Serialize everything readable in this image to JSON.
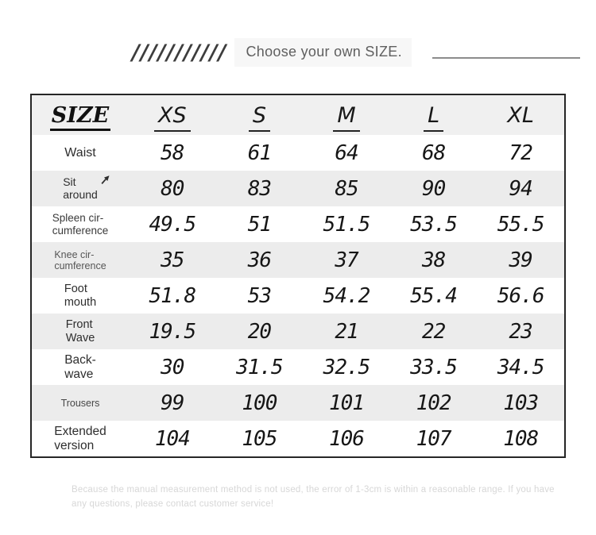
{
  "header": {
    "slashes": "///////////",
    "title": "Choose your own SIZE."
  },
  "table": {
    "corner_label": "SIZE",
    "columns": [
      {
        "label": "XS",
        "underlined": true
      },
      {
        "label": "S",
        "underlined": true
      },
      {
        "label": "M",
        "underlined": true
      },
      {
        "label": "L",
        "underlined": true
      },
      {
        "label": "XL",
        "underlined": false
      }
    ],
    "rows": [
      {
        "label_lines": [
          "Waist"
        ],
        "values": [
          "58",
          "61",
          "64",
          "68",
          "72"
        ]
      },
      {
        "label_lines": [
          "Sit",
          "around"
        ],
        "values": [
          "80",
          "83",
          "85",
          "90",
          "94"
        ],
        "icon": "cursor-arrow"
      },
      {
        "label_lines": [
          "Spleen cir-",
          "cumference"
        ],
        "values": [
          "49.5",
          "51",
          "51.5",
          "53.5",
          "55.5"
        ]
      },
      {
        "label_lines": [
          "Knee cir-",
          "cumference"
        ],
        "values": [
          "35",
          "36",
          "37",
          "38",
          "39"
        ]
      },
      {
        "label_lines": [
          "Foot",
          "mouth"
        ],
        "values": [
          "51.8",
          "53",
          "54.2",
          "55.4",
          "56.6"
        ]
      },
      {
        "label_lines": [
          "Front",
          "Wave"
        ],
        "values": [
          "19.5",
          "20",
          "21",
          "22",
          "23"
        ]
      },
      {
        "label_lines": [
          "Back-",
          "wave"
        ],
        "values": [
          "30",
          "31.5",
          "32.5",
          "33.5",
          "34.5"
        ]
      },
      {
        "label_lines": [
          "Trousers"
        ],
        "values": [
          "99",
          "100",
          "101",
          "102",
          "103"
        ]
      },
      {
        "label_lines": [
          "Extended",
          "version"
        ],
        "values": [
          "104",
          "105",
          "106",
          "107",
          "108"
        ]
      }
    ]
  },
  "footer": {
    "note": "Because the manual measurement method is not used, the error of 1-3cm is within a reasonable range. If you have any questions, please contact customer service!"
  },
  "colors": {
    "table_border": "#262626",
    "row_alt_bg": "#ececec",
    "header_row_bg": "#f0f0f0",
    "number_text": "#161616",
    "title_text": "#5f5f5f",
    "underline": "#8c8c8c",
    "footer_text": "#d7d7d7"
  }
}
